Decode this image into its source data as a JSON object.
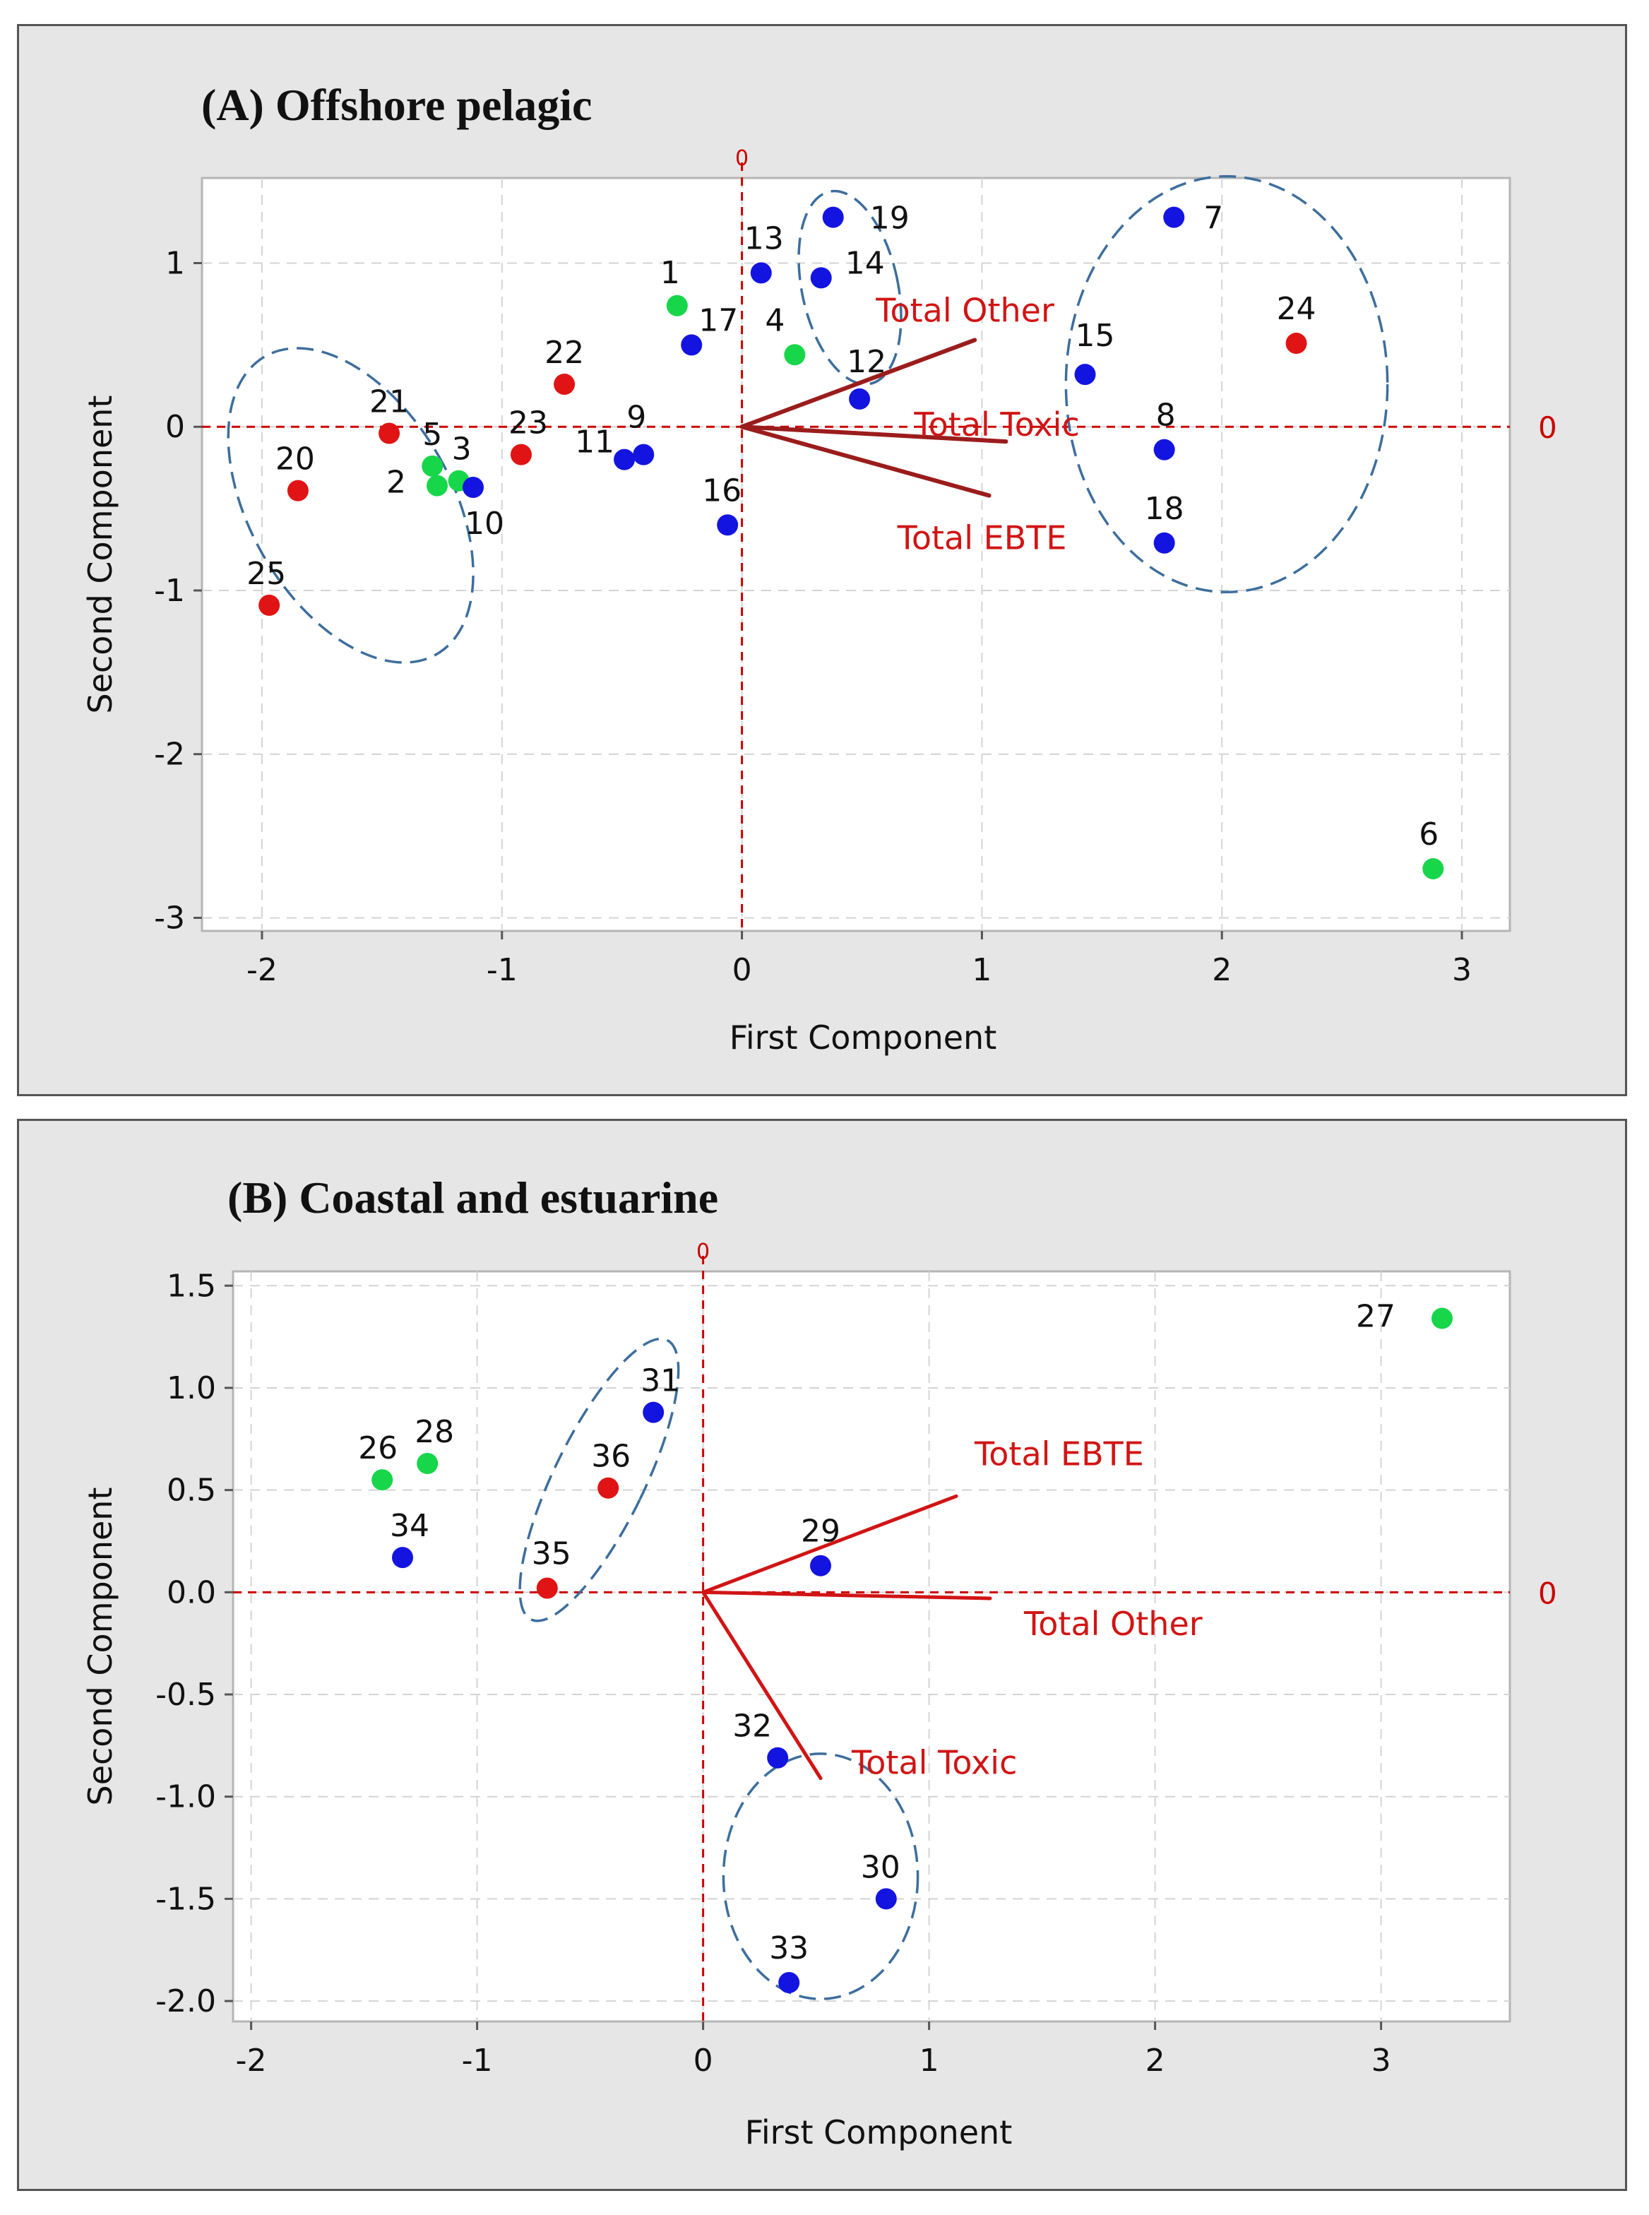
{
  "figure": {
    "chart_data": [
      {
        "type": "scatter",
        "subtype": "biplot",
        "title": "(A) Offshore pelagic",
        "xlabel": "First Component",
        "ylabel": "Second Component",
        "xlim": [
          -2.25,
          3.2
        ],
        "ylim": [
          -3.08,
          1.52
        ],
        "xticks": [
          -2,
          -1,
          0,
          1,
          2,
          3
        ],
        "yticks": [
          1,
          0,
          -1,
          -2,
          -3
        ],
        "reference_line_label": "0",
        "colors": {
          "green": "#17d64a",
          "blue": "#1414e0",
          "red": "#e01414",
          "vector": "#9b1c1c",
          "refline": "#cc0000",
          "ellipse": "#3d6e9c"
        },
        "points": [
          {
            "id": "1",
            "x": -0.27,
            "y": 0.74,
            "color": "green"
          },
          {
            "id": "2",
            "x": -1.27,
            "y": -0.36,
            "color": "green"
          },
          {
            "id": "3",
            "x": -1.18,
            "y": -0.33,
            "color": "green"
          },
          {
            "id": "4",
            "x": 0.22,
            "y": 0.44,
            "color": "green"
          },
          {
            "id": "5",
            "x": -1.29,
            "y": -0.24,
            "color": "green"
          },
          {
            "id": "6",
            "x": 2.88,
            "y": -2.7,
            "color": "green"
          },
          {
            "id": "7",
            "x": 1.8,
            "y": 1.28,
            "color": "blue"
          },
          {
            "id": "8",
            "x": 1.76,
            "y": -0.14,
            "color": "blue"
          },
          {
            "id": "9",
            "x": -0.41,
            "y": -0.17,
            "color": "blue"
          },
          {
            "id": "10",
            "x": -1.12,
            "y": -0.37,
            "color": "blue"
          },
          {
            "id": "11",
            "x": -0.49,
            "y": -0.2,
            "color": "blue"
          },
          {
            "id": "12",
            "x": 0.49,
            "y": 0.17,
            "color": "blue"
          },
          {
            "id": "13",
            "x": 0.08,
            "y": 0.94,
            "color": "blue"
          },
          {
            "id": "14",
            "x": 0.33,
            "y": 0.91,
            "color": "blue"
          },
          {
            "id": "15",
            "x": 1.43,
            "y": 0.32,
            "color": "blue"
          },
          {
            "id": "16",
            "x": -0.06,
            "y": -0.6,
            "color": "blue"
          },
          {
            "id": "17",
            "x": -0.21,
            "y": 0.5,
            "color": "blue"
          },
          {
            "id": "18",
            "x": 1.76,
            "y": -0.71,
            "color": "blue"
          },
          {
            "id": "19",
            "x": 0.38,
            "y": 1.28,
            "color": "blue"
          },
          {
            "id": "20",
            "x": -1.85,
            "y": -0.39,
            "color": "red"
          },
          {
            "id": "21",
            "x": -1.47,
            "y": -0.04,
            "color": "red"
          },
          {
            "id": "22",
            "x": -0.74,
            "y": 0.26,
            "color": "red"
          },
          {
            "id": "23",
            "x": -0.92,
            "y": -0.17,
            "color": "red"
          },
          {
            "id": "24",
            "x": 2.31,
            "y": 0.51,
            "color": "red"
          },
          {
            "id": "25",
            "x": -1.97,
            "y": -1.09,
            "color": "red"
          }
        ],
        "vectors": [
          {
            "label": "Total Other",
            "x": 0.97,
            "y": 0.53
          },
          {
            "label": "Total Toxic",
            "x": 1.1,
            "y": -0.09
          },
          {
            "label": "Total EBTE",
            "x": 1.03,
            "y": -0.42
          }
        ]
      },
      {
        "type": "scatter",
        "subtype": "biplot",
        "title": "(B) Coastal and estuarine",
        "xlabel": "First Component",
        "ylabel": "Second Component",
        "xlim": [
          -2.08,
          3.57
        ],
        "ylim": [
          -2.1,
          1.57
        ],
        "xticks": [
          -2,
          -1,
          0,
          1,
          2,
          3
        ],
        "yticks": [
          1.5,
          1.0,
          0.5,
          0.0,
          -0.5,
          -1.0,
          -1.5,
          -2.0
        ],
        "ytick_labels": [
          "1.5",
          "1.0",
          "0.5",
          "0.0",
          "-0.5",
          "-1.0",
          "-1.5",
          "-2.0"
        ],
        "reference_line_label": "0",
        "colors": {
          "green": "#17d64a",
          "blue": "#1414e0",
          "red": "#e01414",
          "vector": "#d11414",
          "refline": "#cc0000",
          "ellipse": "#3d6e9c"
        },
        "points": [
          {
            "id": "26",
            "x": -1.42,
            "y": 0.55,
            "color": "green"
          },
          {
            "id": "27",
            "x": 3.27,
            "y": 1.34,
            "color": "green"
          },
          {
            "id": "28",
            "x": -1.22,
            "y": 0.63,
            "color": "green"
          },
          {
            "id": "29",
            "x": 0.52,
            "y": 0.13,
            "color": "blue"
          },
          {
            "id": "30",
            "x": 0.81,
            "y": -1.5,
            "color": "blue"
          },
          {
            "id": "31",
            "x": -0.22,
            "y": 0.88,
            "color": "blue"
          },
          {
            "id": "32",
            "x": 0.33,
            "y": -0.81,
            "color": "blue"
          },
          {
            "id": "33",
            "x": 0.38,
            "y": -1.91,
            "color": "blue"
          },
          {
            "id": "34",
            "x": -1.33,
            "y": 0.17,
            "color": "blue"
          },
          {
            "id": "35",
            "x": -0.69,
            "y": 0.02,
            "color": "red"
          },
          {
            "id": "36",
            "x": -0.42,
            "y": 0.51,
            "color": "red"
          }
        ],
        "vectors": [
          {
            "label": "Total EBTE",
            "x": 1.12,
            "y": 0.47
          },
          {
            "label": "Total Other",
            "x": 1.27,
            "y": -0.03
          },
          {
            "label": "Total Toxic",
            "x": 0.52,
            "y": -0.91
          }
        ]
      }
    ]
  }
}
